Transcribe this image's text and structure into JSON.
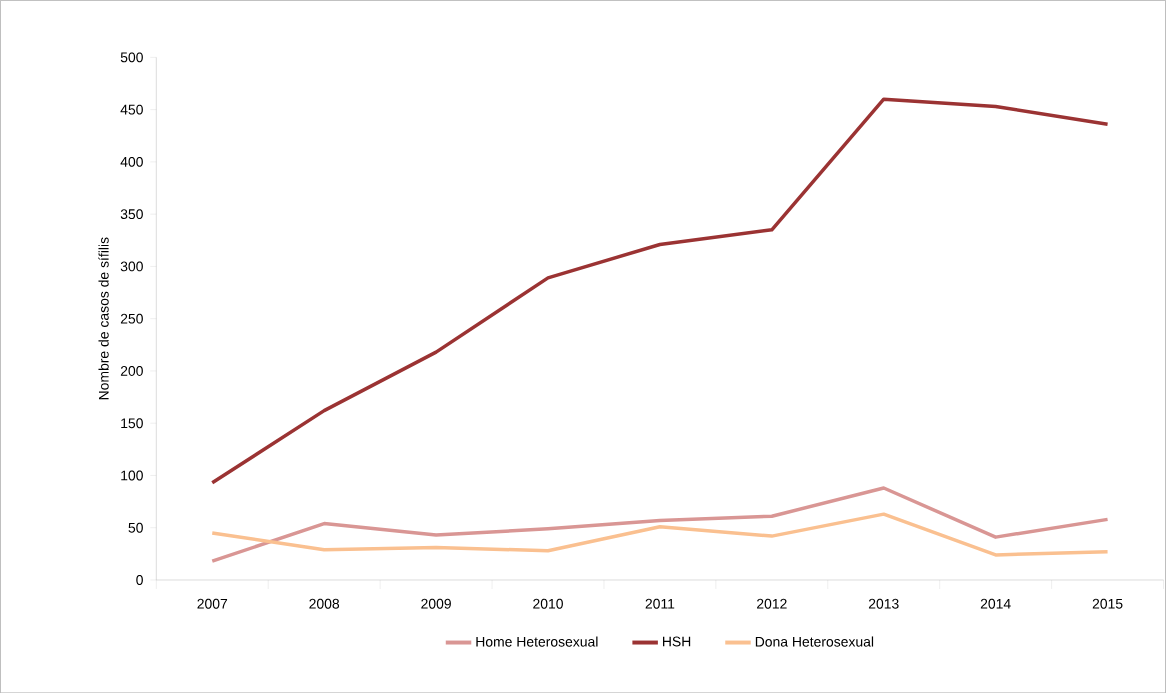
{
  "chart_data": {
    "type": "line",
    "ylabel": "Nombre de casos de sífilis",
    "categories": [
      "2007",
      "2008",
      "2009",
      "2010",
      "2011",
      "2012",
      "2013",
      "2014",
      "2015"
    ],
    "series": [
      {
        "name": "Home Heterosexual",
        "color": "#d99694",
        "values": [
          18,
          54,
          43,
          49,
          57,
          61,
          88,
          41,
          58
        ]
      },
      {
        "name": "HSH",
        "color": "#9b3333",
        "values": [
          93,
          162,
          218,
          289,
          321,
          335,
          460,
          453,
          436
        ]
      },
      {
        "name": "Dona Heterosexual",
        "color": "#fac090",
        "values": [
          45,
          29,
          31,
          28,
          51,
          42,
          63,
          24,
          27
        ]
      }
    ],
    "ylim": [
      0,
      500
    ],
    "yticks": [
      0,
      50,
      100,
      150,
      200,
      250,
      300,
      350,
      400,
      450,
      500
    ],
    "grid": false,
    "legend": "bottom",
    "marker": "none",
    "line_style": "solid"
  }
}
